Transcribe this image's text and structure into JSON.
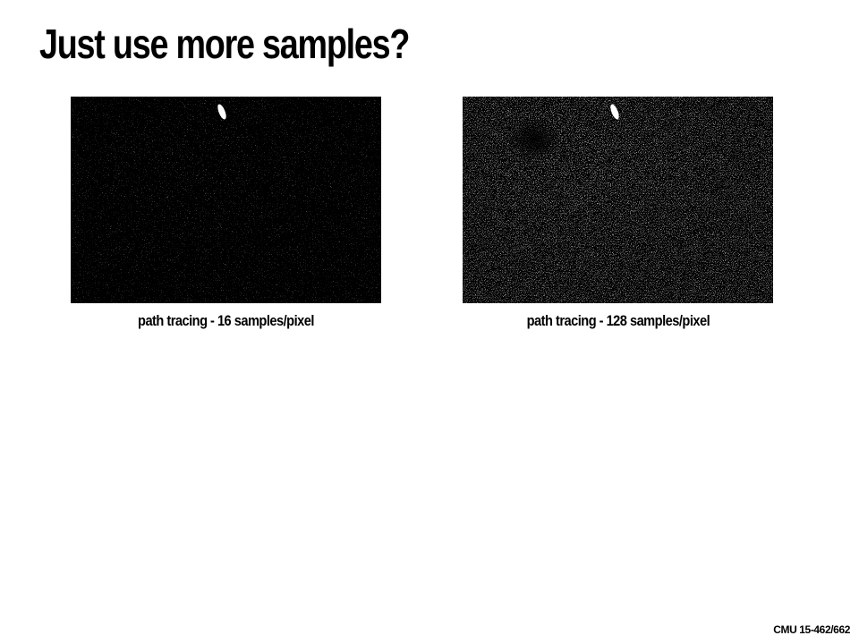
{
  "slide": {
    "title": "Just use more samples?",
    "footer": "CMU 15-462/662"
  },
  "figures": [
    {
      "caption": "path tracing - 16 samples/pixel",
      "samples_per_pixel": 16,
      "image_description_icon": "noisy-render-dark-icon"
    },
    {
      "caption": "path tracing - 128 samples/pixel",
      "samples_per_pixel": 128,
      "image_description_icon": "noisy-render-brighter-icon"
    }
  ],
  "colors": {
    "background": "#ffffff",
    "text": "#000000",
    "render_background": "#000000",
    "noise": "#ffffff"
  }
}
